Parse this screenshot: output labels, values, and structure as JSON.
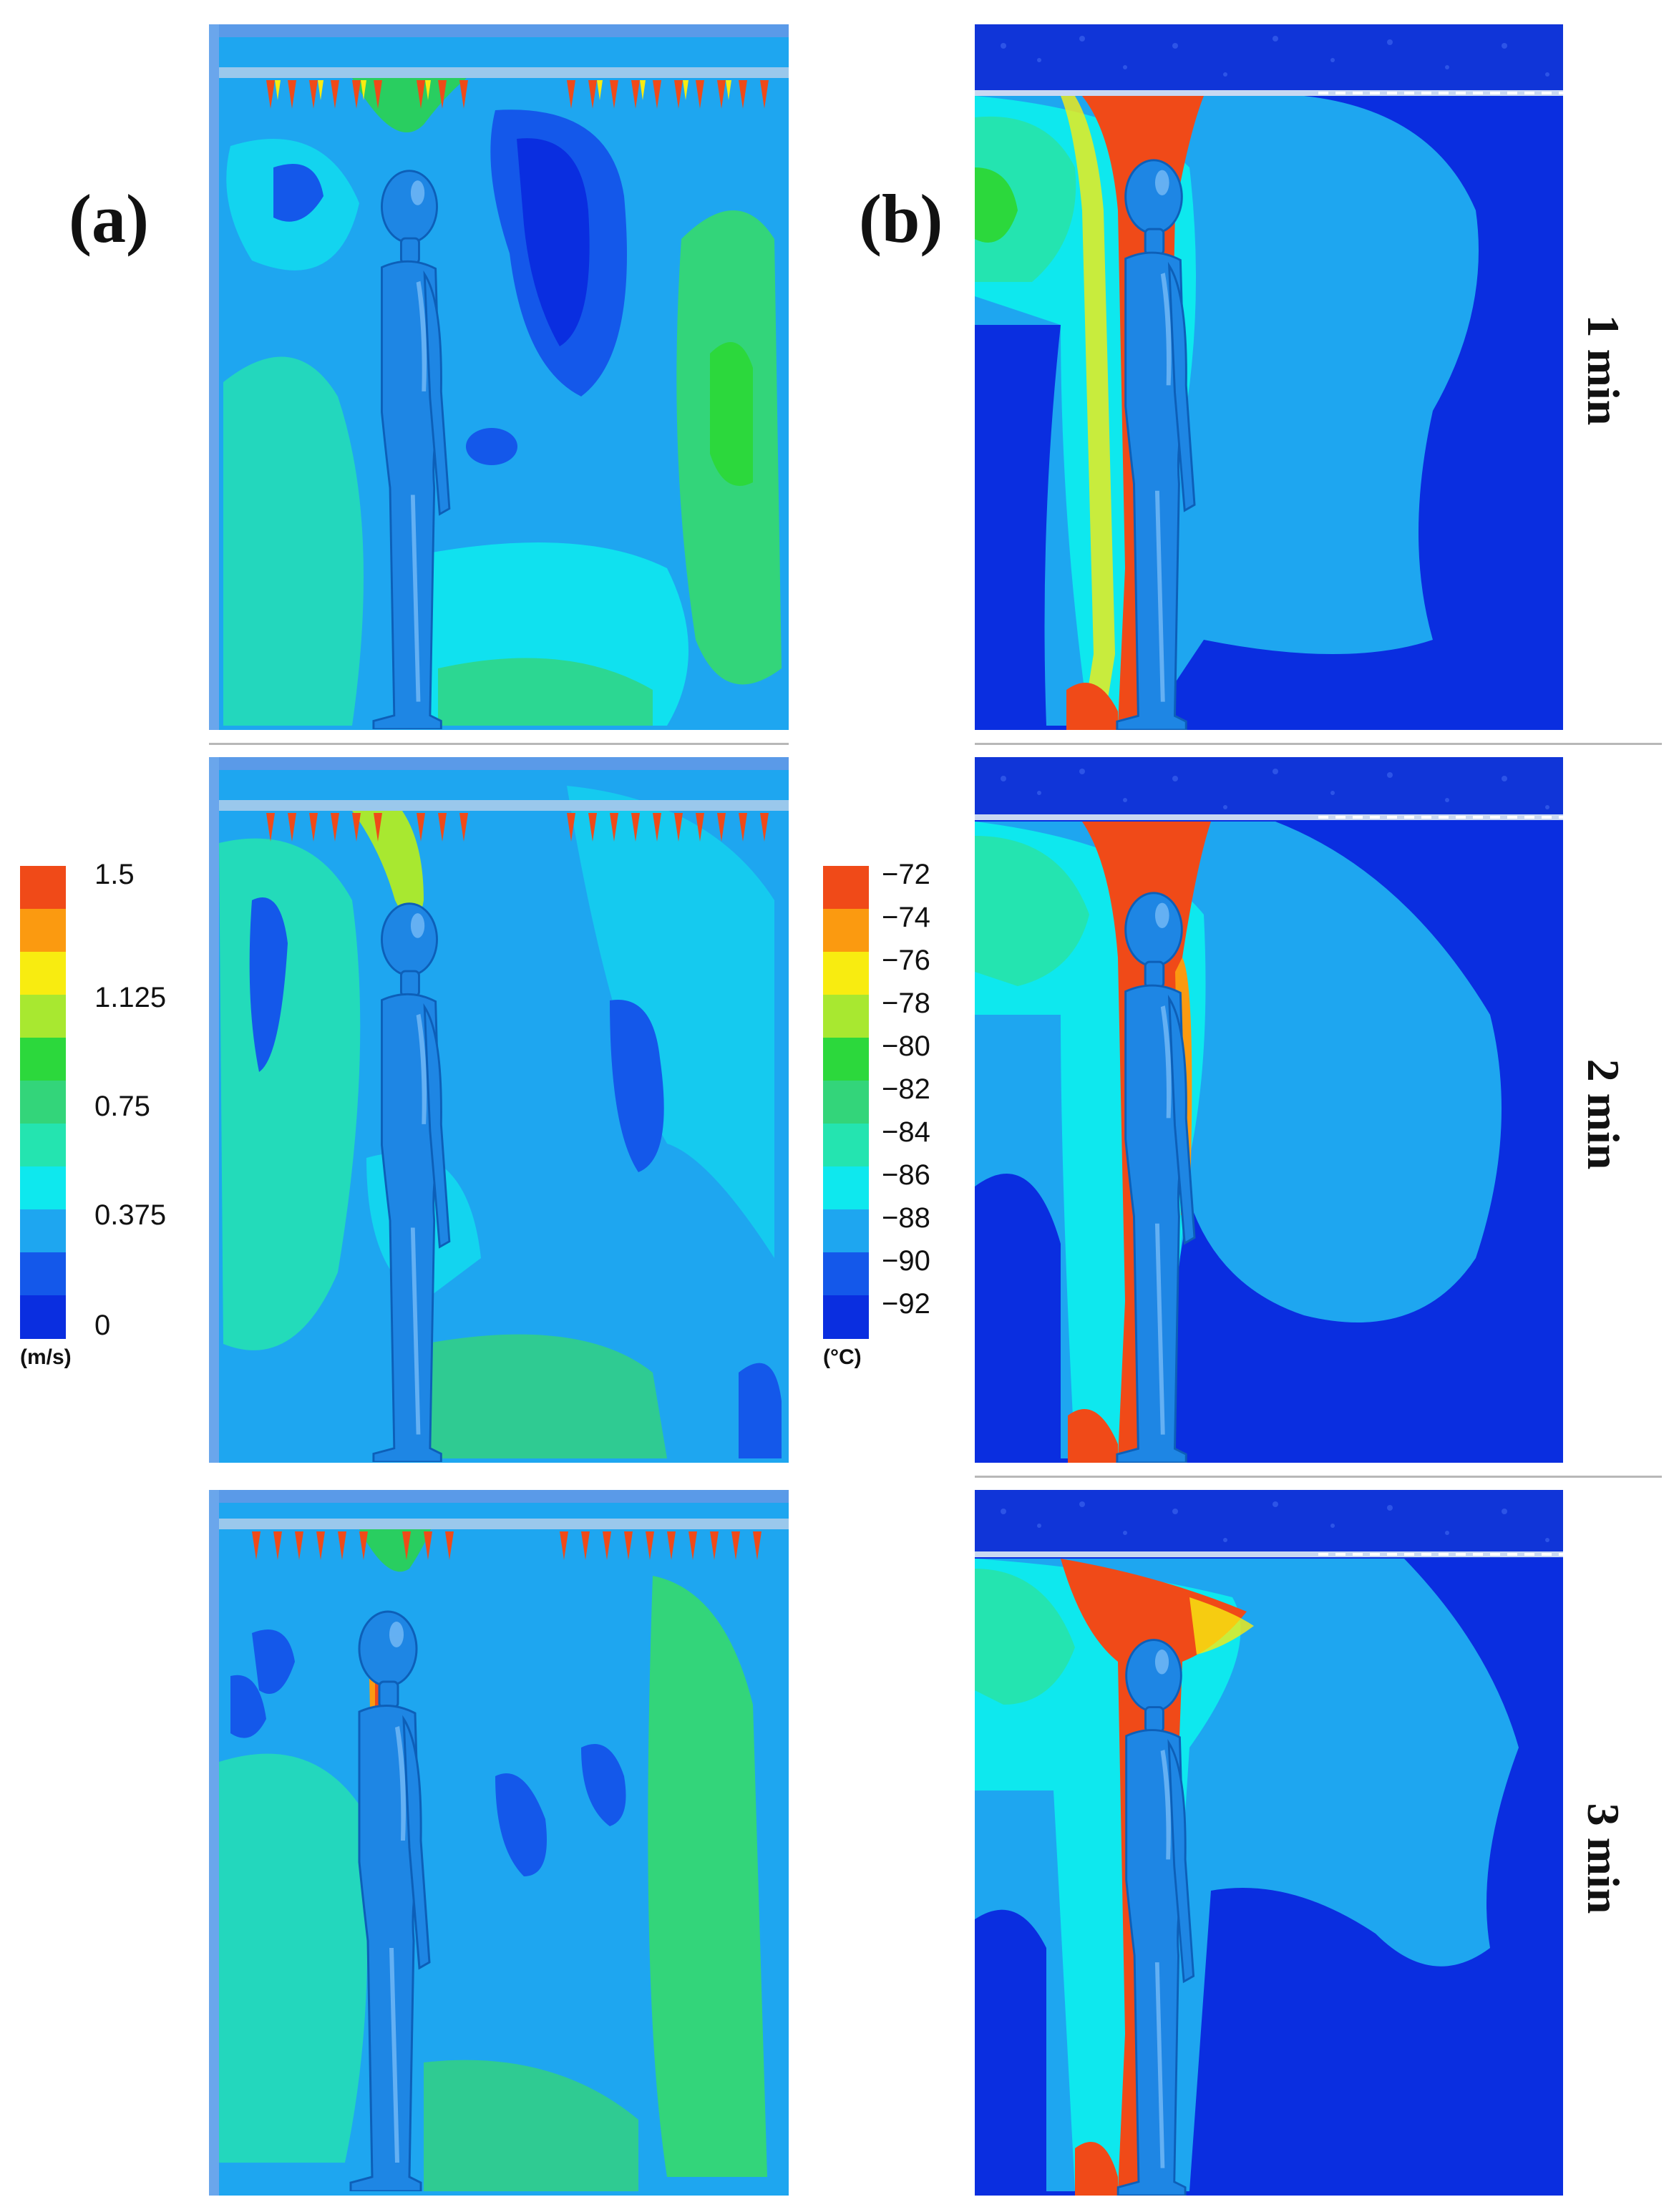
{
  "figure": {
    "label_a": "(a)",
    "label_b": "(b)",
    "time_labels": [
      "1 min",
      "2 min",
      "3 min"
    ]
  },
  "colorbar_velocity": {
    "unit": "(m/s)",
    "ticks": [
      "1.5",
      "1.125",
      "0.75",
      "0.375",
      "0"
    ],
    "colors": [
      "#f04a18",
      "#fb9a10",
      "#f8ec10",
      "#a8e830",
      "#2cd83c",
      "#33d57a",
      "#24e4b0",
      "#0ee8ee",
      "#1ea6f0",
      "#1458ea",
      "#0a2ee0"
    ]
  },
  "colorbar_temperature": {
    "unit": "(°C)",
    "ticks": [
      "−72",
      "−74",
      "−76",
      "−78",
      "−80",
      "−82",
      "−84",
      "−86",
      "−88",
      "−90",
      "−92"
    ],
    "colors": [
      "#f04a18",
      "#fb9a10",
      "#f8ec10",
      "#a8e830",
      "#2cd83c",
      "#33d57a",
      "#24e4b0",
      "#0ee8ee",
      "#1ea6f0",
      "#1458ea",
      "#0a2ee0"
    ]
  }
}
